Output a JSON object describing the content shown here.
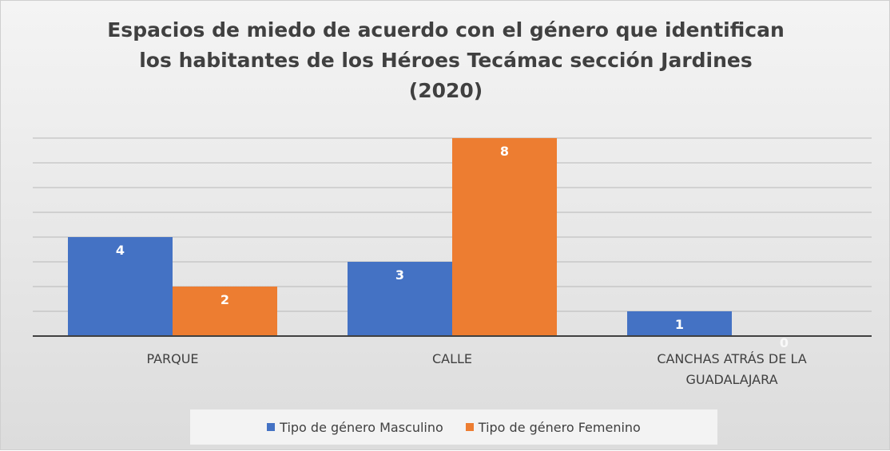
{
  "chart_data": {
    "type": "bar",
    "title": "Espacios de miedo de acuerdo con el género que identifican los habitantes de los Héroes Tecámac sección Jardines (2020)",
    "categories": [
      "PARQUE",
      "CALLE",
      "CANCHAS ATRÁS DE LA GUADALAJARA"
    ],
    "series": [
      {
        "name": "Tipo de género Masculino",
        "color": "#4472c4",
        "values": [
          4,
          3,
          1
        ]
      },
      {
        "name": "Tipo de género Femenino",
        "color": "#ed7d31",
        "values": [
          2,
          8,
          0
        ]
      }
    ],
    "ylim": [
      0,
      8
    ],
    "yticks": [
      0,
      1,
      2,
      3,
      4,
      5,
      6,
      7,
      8
    ],
    "grid": true,
    "legend": "bottom"
  }
}
